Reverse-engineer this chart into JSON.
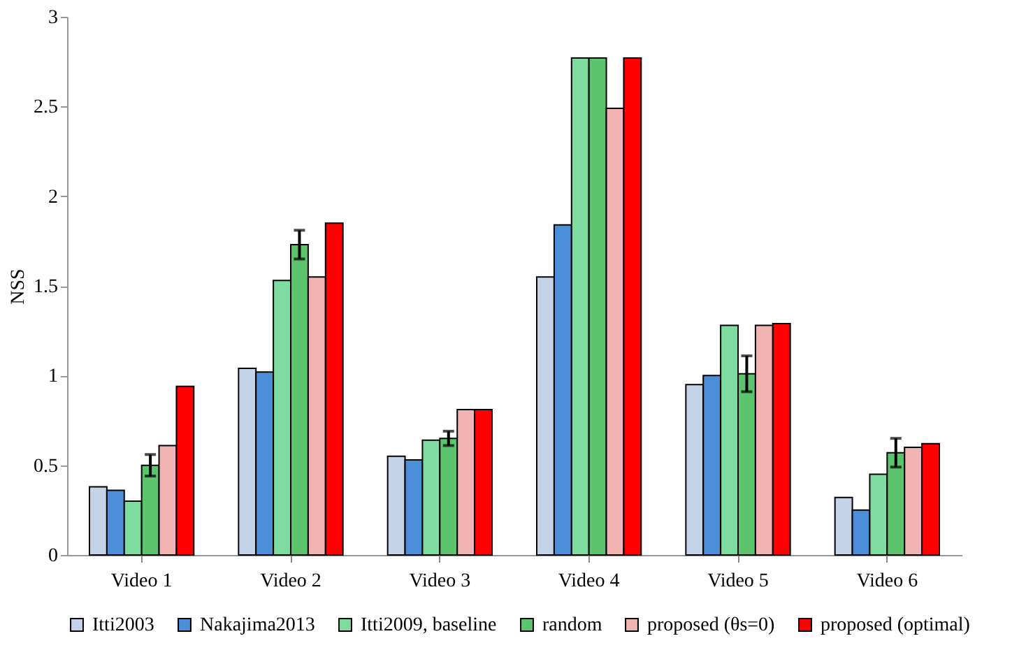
{
  "chart_data": {
    "type": "bar",
    "ylabel": "NSS",
    "categories": [
      "Video 1",
      "Video 2",
      "Video 3",
      "Video 4",
      "Video 5",
      "Video 6"
    ],
    "series": [
      {
        "name": "Itti2003",
        "color": "#c5d3e8",
        "values": [
          0.38,
          1.04,
          0.55,
          1.55,
          0.95,
          0.32
        ]
      },
      {
        "name": "Nakajima2013",
        "color": "#4a8fd8",
        "values": [
          0.36,
          1.02,
          0.53,
          1.84,
          1.0,
          0.25
        ]
      },
      {
        "name": "Itti2009, baseline",
        "color": "#7fdca0",
        "values": [
          0.3,
          1.53,
          0.64,
          2.77,
          1.28,
          0.45
        ]
      },
      {
        "name": "random",
        "color": "#5cc46c",
        "values": [
          0.5,
          1.73,
          0.65,
          2.77,
          1.01,
          0.57
        ],
        "errors": [
          0.06,
          0.08,
          0.04,
          null,
          0.1,
          0.08
        ]
      },
      {
        "name": "proposed (θs=0)",
        "color": "#f2b3b3",
        "values": [
          0.61,
          1.55,
          0.81,
          2.49,
          1.28,
          0.6
        ]
      },
      {
        "name": "proposed (optimal)",
        "color": "#ff0000",
        "values": [
          0.94,
          1.85,
          0.81,
          2.77,
          1.29,
          0.62
        ]
      }
    ],
    "ylim": [
      0,
      3
    ],
    "yticks": [
      0,
      0.5,
      1,
      1.5,
      2,
      2.5,
      3
    ],
    "grid": false,
    "legend": "bottom"
  }
}
